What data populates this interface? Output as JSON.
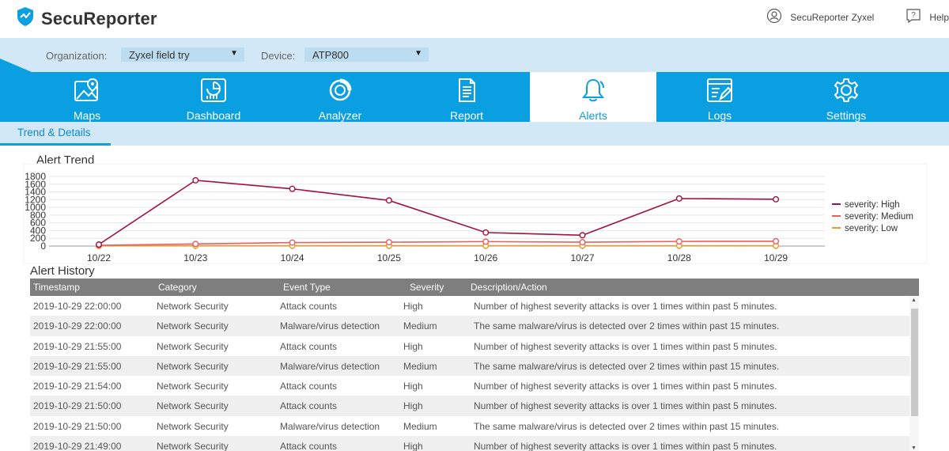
{
  "app": {
    "title": "SecuReporter"
  },
  "header": {
    "user_label": "SecuReporter Zyxel",
    "help_label": "Help"
  },
  "filters": {
    "organization_label": "Organization:",
    "organization_value": "Zyxel field try",
    "device_label": "Device:",
    "device_value": "ATP800"
  },
  "nav": {
    "items": [
      {
        "label": "Maps",
        "icon": "map-icon"
      },
      {
        "label": "Dashboard",
        "icon": "dashboard-icon"
      },
      {
        "label": "Analyzer",
        "icon": "analyzer-icon"
      },
      {
        "label": "Report",
        "icon": "report-icon"
      },
      {
        "label": "Alerts",
        "icon": "bell-icon"
      },
      {
        "label": "Logs",
        "icon": "logs-icon"
      },
      {
        "label": "Settings",
        "icon": "gear-icon"
      }
    ],
    "active": "Alerts"
  },
  "subtab": {
    "label": "Trend & Details"
  },
  "colors": {
    "brand": "#0a9fe0",
    "high": "#a0123f",
    "medium": "#e66060",
    "low": "#f09820"
  },
  "chart_data": {
    "type": "line",
    "title": "Alert Trend",
    "categories": [
      "10/22",
      "10/23",
      "10/24",
      "10/25",
      "10/26",
      "10/27",
      "10/28",
      "10/29"
    ],
    "ylim": [
      0,
      1800
    ],
    "yticks": [
      "1800",
      "1600",
      "1400",
      "1200",
      "1000",
      "800",
      "600",
      "400",
      "200",
      "0"
    ],
    "grid": true,
    "legend_position": "right",
    "series": [
      {
        "name": "severity: High",
        "color": "#a0123f",
        "values": [
          40,
          1700,
          1480,
          1180,
          350,
          280,
          1230,
          1210
        ]
      },
      {
        "name": "severity: Medium",
        "color": "#e66060",
        "values": [
          20,
          55,
          90,
          100,
          115,
          100,
          120,
          125
        ]
      },
      {
        "name": "severity: Low",
        "color": "#f09820",
        "values": [
          5,
          10,
          10,
          10,
          10,
          10,
          10,
          10
        ]
      }
    ]
  },
  "history": {
    "title": "Alert History",
    "columns": [
      "Timestamp",
      "Category",
      "Event Type",
      "Severity",
      "Description/Action"
    ],
    "rows": [
      [
        "2019-10-29 22:00:00",
        "Network Security",
        "Attack counts",
        "High",
        "Number of highest severity attacks is over 1 times within past 5 minutes."
      ],
      [
        "2019-10-29 22:00:00",
        "Network Security",
        "Malware/virus detection",
        "Medium",
        "The same malware/virus is detected over 2 times within past 15 minutes."
      ],
      [
        "2019-10-29 21:55:00",
        "Network Security",
        "Attack counts",
        "High",
        "Number of highest severity attacks is over 1 times within past 5 minutes."
      ],
      [
        "2019-10-29 21:55:00",
        "Network Security",
        "Malware/virus detection",
        "Medium",
        "The same malware/virus is detected over 2 times within past 15 minutes."
      ],
      [
        "2019-10-29 21:54:00",
        "Network Security",
        "Attack counts",
        "High",
        "Number of highest severity attacks is over 1 times within past 5 minutes."
      ],
      [
        "2019-10-29 21:50:00",
        "Network Security",
        "Attack counts",
        "High",
        "Number of highest severity attacks is over 1 times within past 5 minutes."
      ],
      [
        "2019-10-29 21:50:00",
        "Network Security",
        "Malware/virus detection",
        "Medium",
        "The same malware/virus is detected over 2 times within past 15 minutes."
      ],
      [
        "2019-10-29 21:49:00",
        "Network Security",
        "Attack counts",
        "High",
        "Number of highest severity attacks is over 1 times within past 5 minutes."
      ]
    ]
  }
}
